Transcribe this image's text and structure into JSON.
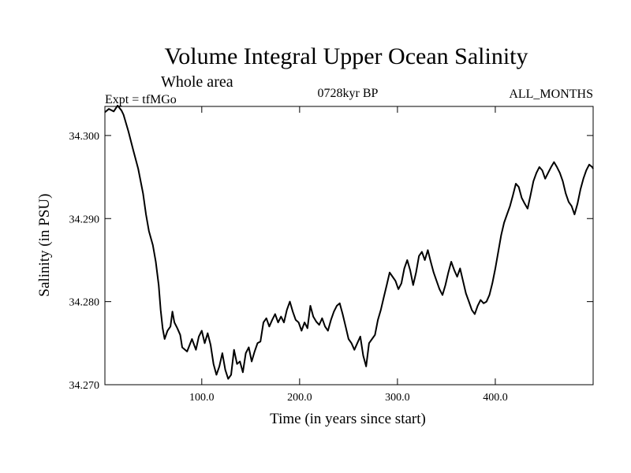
{
  "chart_data": {
    "type": "line",
    "title": "Volume Integral Upper Ocean Salinity",
    "subtitle": "Whole area",
    "experiment": "Expt = tfMGo",
    "period": "0728kyr BP",
    "months": "ALL_MONTHS",
    "xlabel": "Time (in years since start)",
    "ylabel": "Salinity (in PSU)",
    "xlim": [
      1,
      500
    ],
    "ylim": [
      34.27,
      34.3035
    ],
    "x_ticks": [
      100,
      200,
      300,
      400
    ],
    "x_tick_labels": [
      "100.0",
      "200.0",
      "300.0",
      "400.0"
    ],
    "y_ticks": [
      34.27,
      34.28,
      34.29,
      34.3
    ],
    "y_tick_labels": [
      "34.270",
      "34.280",
      "34.290",
      "34.300"
    ],
    "grid": false,
    "series": [
      {
        "color": "#000000",
        "points": [
          [
            1,
            34.3028
          ],
          [
            5,
            34.3032
          ],
          [
            10,
            34.3029
          ],
          [
            14,
            34.3036
          ],
          [
            18,
            34.303
          ],
          [
            20,
            34.3025
          ],
          [
            25,
            34.3005
          ],
          [
            30,
            34.2982
          ],
          [
            35,
            34.296
          ],
          [
            40,
            34.293
          ],
          [
            43,
            34.2905
          ],
          [
            46,
            34.2885
          ],
          [
            50,
            34.2868
          ],
          [
            53,
            34.2848
          ],
          [
            56,
            34.282
          ],
          [
            58,
            34.279
          ],
          [
            60,
            34.2768
          ],
          [
            62,
            34.2755
          ],
          [
            65,
            34.2765
          ],
          [
            68,
            34.277
          ],
          [
            70,
            34.2788
          ],
          [
            72,
            34.2775
          ],
          [
            75,
            34.2768
          ],
          [
            78,
            34.276
          ],
          [
            80,
            34.2745
          ],
          [
            85,
            34.274
          ],
          [
            90,
            34.2755
          ],
          [
            94,
            34.2742
          ],
          [
            97,
            34.2758
          ],
          [
            100,
            34.2765
          ],
          [
            103,
            34.275
          ],
          [
            106,
            34.2762
          ],
          [
            109,
            34.2748
          ],
          [
            112,
            34.2725
          ],
          [
            115,
            34.2712
          ],
          [
            118,
            34.2722
          ],
          [
            121,
            34.2738
          ],
          [
            124,
            34.2718
          ],
          [
            127,
            34.2707
          ],
          [
            130,
            34.2712
          ],
          [
            133,
            34.2742
          ],
          [
            136,
            34.2725
          ],
          [
            139,
            34.2728
          ],
          [
            142,
            34.2715
          ],
          [
            145,
            34.2738
          ],
          [
            148,
            34.2745
          ],
          [
            151,
            34.2728
          ],
          [
            154,
            34.274
          ],
          [
            157,
            34.275
          ],
          [
            160,
            34.2752
          ],
          [
            163,
            34.2775
          ],
          [
            166,
            34.278
          ],
          [
            169,
            34.277
          ],
          [
            172,
            34.2778
          ],
          [
            175,
            34.2785
          ],
          [
            178,
            34.2775
          ],
          [
            181,
            34.2782
          ],
          [
            184,
            34.2775
          ],
          [
            187,
            34.279
          ],
          [
            190,
            34.28
          ],
          [
            193,
            34.2788
          ],
          [
            196,
            34.2778
          ],
          [
            199,
            34.2775
          ],
          [
            202,
            34.2765
          ],
          [
            205,
            34.2775
          ],
          [
            208,
            34.2768
          ],
          [
            211,
            34.2795
          ],
          [
            214,
            34.2782
          ],
          [
            217,
            34.2776
          ],
          [
            220,
            34.2772
          ],
          [
            223,
            34.278
          ],
          [
            226,
            34.277
          ],
          [
            229,
            34.2765
          ],
          [
            232,
            34.2778
          ],
          [
            235,
            34.2788
          ],
          [
            238,
            34.2795
          ],
          [
            241,
            34.2798
          ],
          [
            244,
            34.2785
          ],
          [
            247,
            34.277
          ],
          [
            250,
            34.2755
          ],
          [
            253,
            34.275
          ],
          [
            256,
            34.2742
          ],
          [
            259,
            34.275
          ],
          [
            262,
            34.2758
          ],
          [
            265,
            34.2735
          ],
          [
            268,
            34.2722
          ],
          [
            271,
            34.275
          ],
          [
            274,
            34.2755
          ],
          [
            277,
            34.276
          ],
          [
            280,
            34.2778
          ],
          [
            283,
            34.279
          ],
          [
            286,
            34.2805
          ],
          [
            289,
            34.282
          ],
          [
            292,
            34.2835
          ],
          [
            295,
            34.283
          ],
          [
            298,
            34.2825
          ],
          [
            301,
            34.2815
          ],
          [
            304,
            34.2822
          ],
          [
            307,
            34.284
          ],
          [
            310,
            34.285
          ],
          [
            313,
            34.2838
          ],
          [
            316,
            34.282
          ],
          [
            319,
            34.2835
          ],
          [
            322,
            34.2855
          ],
          [
            325,
            34.286
          ],
          [
            328,
            34.285
          ],
          [
            331,
            34.2862
          ],
          [
            334,
            34.2848
          ],
          [
            337,
            34.2835
          ],
          [
            340,
            34.2825
          ],
          [
            343,
            34.2815
          ],
          [
            346,
            34.2808
          ],
          [
            349,
            34.282
          ],
          [
            352,
            34.2835
          ],
          [
            355,
            34.2848
          ],
          [
            358,
            34.2838
          ],
          [
            361,
            34.283
          ],
          [
            364,
            34.284
          ],
          [
            367,
            34.2825
          ],
          [
            370,
            34.281
          ],
          [
            373,
            34.28
          ],
          [
            376,
            34.279
          ],
          [
            379,
            34.2785
          ],
          [
            382,
            34.2795
          ],
          [
            385,
            34.2802
          ],
          [
            388,
            34.2798
          ],
          [
            391,
            34.28
          ],
          [
            394,
            34.2808
          ],
          [
            397,
            34.2822
          ],
          [
            400,
            34.284
          ],
          [
            403,
            34.286
          ],
          [
            406,
            34.288
          ],
          [
            409,
            34.2895
          ],
          [
            412,
            34.2905
          ],
          [
            415,
            34.2915
          ],
          [
            418,
            34.2928
          ],
          [
            421,
            34.2942
          ],
          [
            424,
            34.2938
          ],
          [
            427,
            34.2925
          ],
          [
            430,
            34.2918
          ],
          [
            433,
            34.2912
          ],
          [
            436,
            34.2928
          ],
          [
            439,
            34.2945
          ],
          [
            442,
            34.2955
          ],
          [
            445,
            34.2962
          ],
          [
            448,
            34.2958
          ],
          [
            451,
            34.2948
          ],
          [
            454,
            34.2955
          ],
          [
            457,
            34.2962
          ],
          [
            460,
            34.2968
          ],
          [
            463,
            34.2962
          ],
          [
            466,
            34.2955
          ],
          [
            469,
            34.2945
          ],
          [
            472,
            34.293
          ],
          [
            475,
            34.292
          ],
          [
            478,
            34.2915
          ],
          [
            481,
            34.2905
          ],
          [
            484,
            34.2918
          ],
          [
            487,
            34.2935
          ],
          [
            490,
            34.2948
          ],
          [
            493,
            34.2958
          ],
          [
            496,
            34.2965
          ],
          [
            499,
            34.2962
          ],
          [
            500,
            34.296
          ]
        ]
      }
    ]
  }
}
